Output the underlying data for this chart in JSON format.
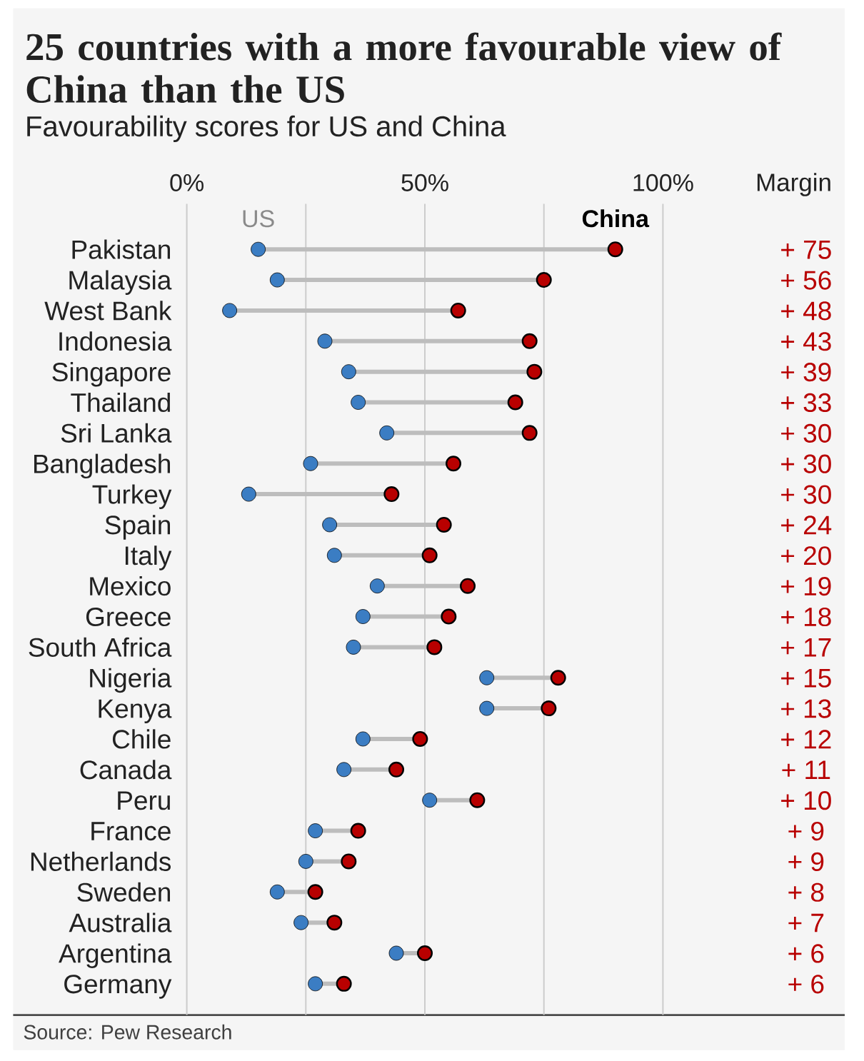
{
  "chart_data": {
    "type": "scatter",
    "orientation": "horizontal",
    "title": "25 countries with a more favourable view of China than the US",
    "subtitle": "Favourability scores for US and China",
    "categories": [
      "Pakistan",
      "Malaysia",
      "West Bank",
      "Indonesia",
      "Singapore",
      "Thailand",
      "Sri Lanka",
      "Bangladesh",
      "Turkey",
      "Spain",
      "Italy",
      "Mexico",
      "Greece",
      "South Africa",
      "Nigeria",
      "Kenya",
      "Chile",
      "Canada",
      "Peru",
      "France",
      "Netherlands",
      "Sweden",
      "Australia",
      "Argentina",
      "Germany"
    ],
    "series": [
      {
        "name": "US",
        "color": "#3b7dc3",
        "values": [
          15,
          19,
          9,
          29,
          34,
          36,
          42,
          26,
          13,
          30,
          31,
          40,
          37,
          35,
          63,
          63,
          37,
          33,
          51,
          27,
          25,
          19,
          24,
          44,
          27
        ]
      },
      {
        "name": "China",
        "color": "#b80000",
        "values": [
          90,
          75,
          57,
          72,
          73,
          69,
          72,
          56,
          43,
          54,
          51,
          59,
          55,
          52,
          78,
          76,
          49,
          44,
          61,
          36,
          34,
          27,
          31,
          50,
          33
        ]
      }
    ],
    "xlim": [
      0,
      100
    ],
    "xticks": [
      {
        "value": 0,
        "label": "0%"
      },
      {
        "value": 25,
        "label": null
      },
      {
        "value": 50,
        "label": "50%"
      },
      {
        "value": 75,
        "label": null
      },
      {
        "value": 100,
        "label": "100%"
      }
    ],
    "grid": "x",
    "marker": "circle",
    "annotations": [
      "Margin",
      "+ 75",
      "+ 56",
      "+ 48",
      "+ 43",
      "+ 39",
      "+ 33",
      "+ 30",
      "+ 30",
      "+ 30",
      "+ 24",
      "+ 20",
      "+ 19",
      "+ 18",
      "+ 17",
      "+ 15",
      "+ 13",
      "+ 12",
      "+ 11",
      "+ 10",
      "+ 9",
      "+ 9",
      "+ 8",
      "+ 7",
      "+ 6",
      "+ 6",
      "Source: Pew Research"
    ]
  }
}
